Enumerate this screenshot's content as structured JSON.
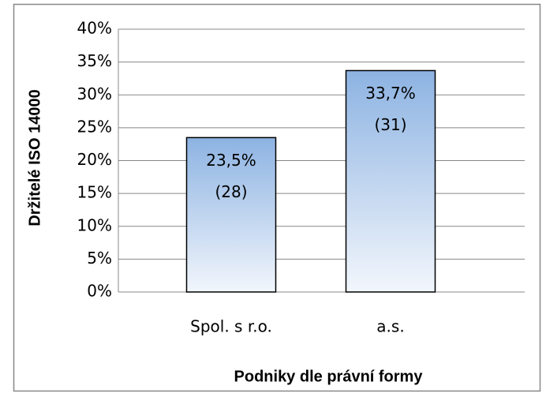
{
  "chart_data": {
    "type": "bar",
    "categories": [
      "Spol. s r.o.",
      "a.s."
    ],
    "values": [
      23.5,
      33.7
    ],
    "value_labels": [
      "23,5%",
      "33,7%"
    ],
    "count_labels": [
      "(28)",
      "(31)"
    ],
    "x_label": "Podniky dle právní formy",
    "y_label": "Držitelé ISO 14000",
    "ylim": [
      0,
      40
    ],
    "yticks": [
      {
        "value": 0,
        "label": "0%"
      },
      {
        "value": 5,
        "label": "5%"
      },
      {
        "value": 10,
        "label": "10%"
      },
      {
        "value": 15,
        "label": "15%"
      },
      {
        "value": 20,
        "label": "20%"
      },
      {
        "value": 25,
        "label": "25%"
      },
      {
        "value": 30,
        "label": "30%"
      },
      {
        "value": 35,
        "label": "35%"
      },
      {
        "value": 40,
        "label": "40%"
      }
    ],
    "grid": true,
    "color": "#8db3e2"
  }
}
